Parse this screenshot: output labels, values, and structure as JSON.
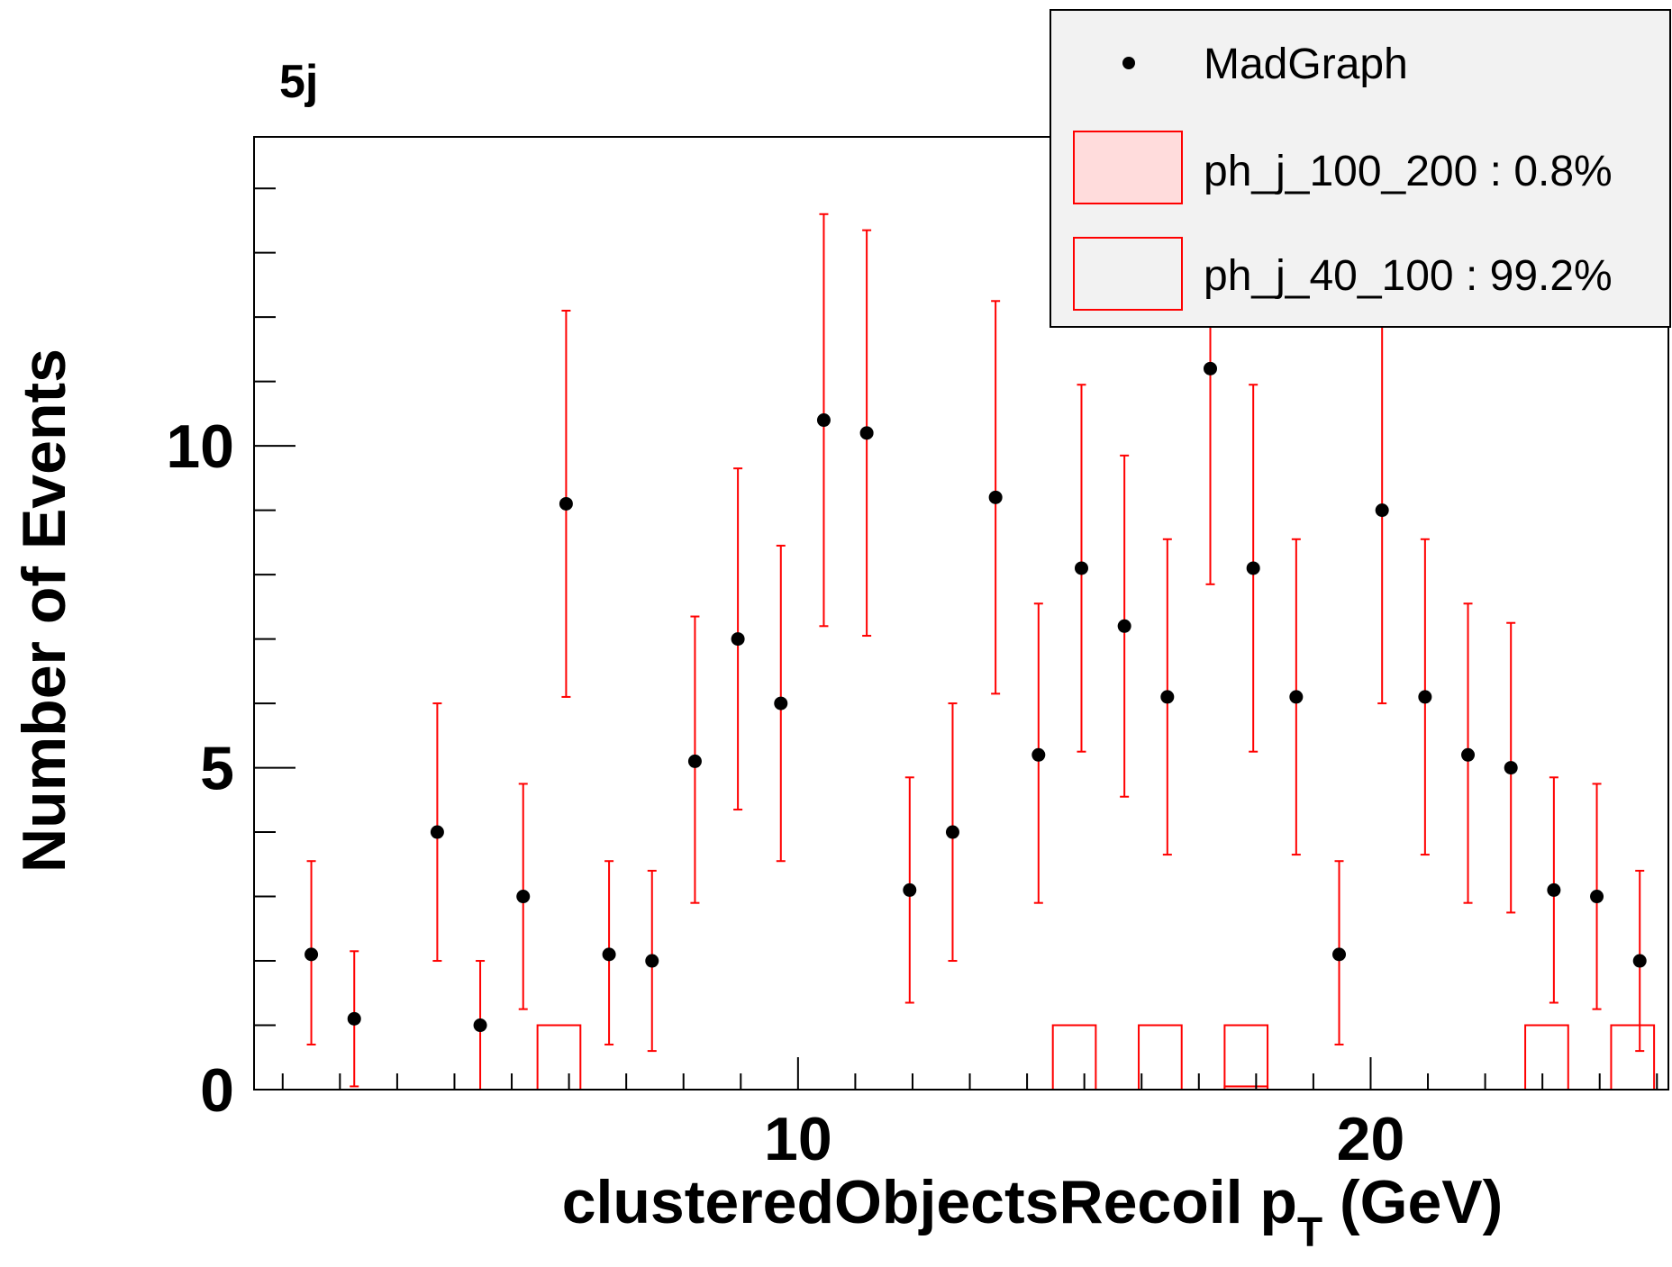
{
  "chart_data": {
    "type": "scatter",
    "title": "5j",
    "xlabel": "clusteredObjectsRecoil p",
    "xlabel_sub": "T",
    "xlabel_unit": " (GeV)",
    "ylabel": "Number of Events",
    "xlim": [
      0.5,
      25.2
    ],
    "ylim": [
      0,
      14.8
    ],
    "x_major_ticks": [
      10,
      20
    ],
    "y_major_ticks": [
      0,
      5,
      10
    ],
    "colors": {
      "data": "#000000",
      "band": "#ff0000",
      "fill": "#ffdcdc",
      "legend_bg": "#f2f2f2"
    },
    "legend": {
      "placement": "top-right",
      "entries": [
        {
          "label": "MadGraph",
          "style": "marker"
        },
        {
          "label": "ph_j_100_200 : 0.8%",
          "style": "filled-box"
        },
        {
          "label": "ph_j_40_100 : 99.2%",
          "style": "open-box"
        }
      ]
    },
    "series": [
      {
        "name": "MadGraph",
        "style": "points-with-errors",
        "x": [
          1.5,
          2.25,
          3.7,
          4.45,
          5.2,
          5.95,
          6.7,
          7.45,
          8.2,
          8.95,
          9.7,
          10.45,
          11.2,
          11.95,
          12.7,
          13.45,
          14.2,
          14.95,
          15.7,
          16.45,
          17.2,
          17.95,
          18.7,
          19.45,
          20.2,
          20.95,
          21.7,
          22.45,
          23.2,
          23.95,
          24.7
        ],
        "y": [
          2.1,
          1.1,
          4.0,
          1.0,
          3.0,
          9.1,
          2.1,
          2.0,
          5.1,
          7.0,
          6.0,
          10.4,
          10.2,
          3.1,
          4.0,
          9.2,
          5.2,
          8.1,
          7.2,
          6.1,
          11.2,
          8.1,
          6.1,
          2.1,
          9.0,
          6.1,
          5.2,
          5.0,
          3.1,
          3.0,
          2.0
        ],
        "err_low": [
          1.4,
          1.05,
          2.0,
          1.0,
          1.75,
          3.0,
          1.4,
          1.4,
          2.2,
          2.65,
          2.45,
          3.2,
          3.15,
          1.75,
          2.0,
          3.05,
          2.3,
          2.85,
          2.65,
          2.45,
          3.35,
          2.85,
          2.45,
          1.4,
          3.0,
          2.45,
          2.3,
          2.25,
          1.75,
          1.75,
          1.4
        ],
        "err_high": [
          1.45,
          1.05,
          2.0,
          1.0,
          1.75,
          3.0,
          1.45,
          1.4,
          2.25,
          2.65,
          2.45,
          3.2,
          3.15,
          1.75,
          2.0,
          3.05,
          2.35,
          2.85,
          2.65,
          2.45,
          3.35,
          2.85,
          2.45,
          1.45,
          3.0,
          2.45,
          2.35,
          2.25,
          1.75,
          1.75,
          1.4
        ]
      },
      {
        "name": "ph_j_40_100 : 99.2%",
        "style": "histogram-open",
        "bin_low": [
          5.45,
          14.45,
          15.95,
          17.45,
          22.7,
          24.2
        ],
        "bin_high": [
          6.2,
          15.2,
          16.7,
          18.2,
          23.45,
          24.95
        ],
        "values": [
          1.0,
          1.0,
          1.0,
          1.0,
          1.0,
          1.0
        ]
      },
      {
        "name": "ph_j_100_200 : 0.8%",
        "style": "histogram-filled",
        "bin_low": [
          17.45
        ],
        "bin_high": [
          18.2
        ],
        "values": [
          0.05
        ]
      }
    ]
  }
}
